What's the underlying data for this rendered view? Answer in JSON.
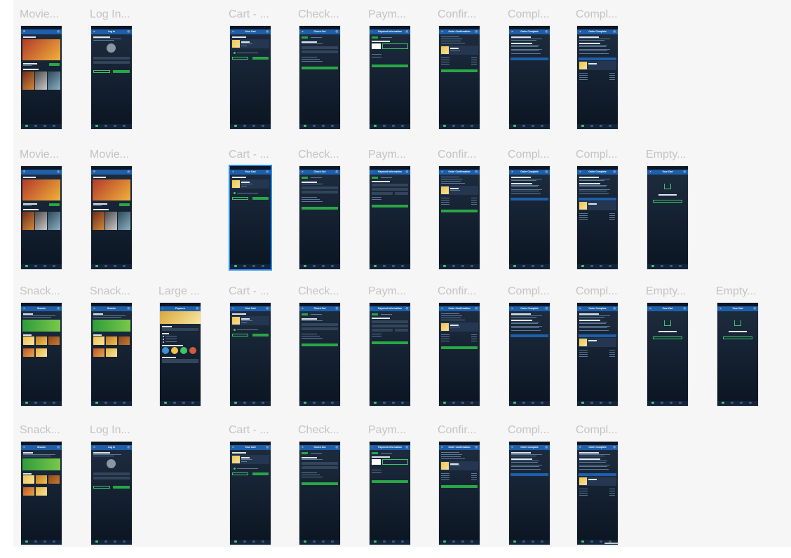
{
  "artboards": [
    {
      "title": "Movie...",
      "kind": "movies"
    },
    {
      "title": "Log In...",
      "kind": "login",
      "nav": "Log In"
    },
    {
      "title": "Cart - ...",
      "kind": "cart",
      "nav": "Your Cart"
    },
    {
      "title": "Check...",
      "kind": "checkout",
      "nav": "Check Out"
    },
    {
      "title": "Paym...",
      "kind": "payment",
      "nav": "Payment Information"
    },
    {
      "title": "Confir...",
      "kind": "confirm",
      "nav": "Order Confirmation"
    },
    {
      "title": "Compl...",
      "kind": "complete",
      "nav": "Order Complete"
    },
    {
      "title": "Compl...",
      "kind": "complete2",
      "nav": "Order Complete"
    },
    {
      "title": "Movie...",
      "kind": "movies"
    },
    {
      "title": "Movie...",
      "kind": "movies"
    },
    {
      "title": "Cart - ...",
      "kind": "cart",
      "nav": "Your Cart",
      "selected": true
    },
    {
      "title": "Check...",
      "kind": "checkout",
      "nav": "Check Out"
    },
    {
      "title": "Paym...",
      "kind": "payment2",
      "nav": "Payment Information"
    },
    {
      "title": "Confir...",
      "kind": "confirm",
      "nav": "Order Confirmation"
    },
    {
      "title": "Compl...",
      "kind": "complete",
      "nav": "Order Complete"
    },
    {
      "title": "Compl...",
      "kind": "complete2",
      "nav": "Order Complete"
    },
    {
      "title": "Empty...",
      "kind": "empty",
      "nav": "Your Cart"
    },
    {
      "title": "Snack...",
      "kind": "snacks",
      "nav": "Snacks"
    },
    {
      "title": "Snack...",
      "kind": "snacks",
      "nav": "Snacks"
    },
    {
      "title": "Large ...",
      "kind": "popcorn",
      "nav": "Popcorn"
    },
    {
      "title": "Cart - ...",
      "kind": "cart",
      "nav": "Your Cart"
    },
    {
      "title": "Check...",
      "kind": "checkout",
      "nav": "Check Out"
    },
    {
      "title": "Paym...",
      "kind": "payment2",
      "nav": "Payment Information"
    },
    {
      "title": "Confir...",
      "kind": "confirm",
      "nav": "Order Confirmation"
    },
    {
      "title": "Compl...",
      "kind": "complete",
      "nav": "Order Complete"
    },
    {
      "title": "Compl...",
      "kind": "complete2",
      "nav": "Order Complete"
    },
    {
      "title": "Empty...",
      "kind": "empty",
      "nav": "Your Cart"
    },
    {
      "title": "Empty...",
      "kind": "empty",
      "nav": "Your Cart"
    },
    {
      "title": "Snack...",
      "kind": "snacks",
      "nav": "Snacks"
    },
    {
      "title": "Log In...",
      "kind": "login",
      "nav": "Log In"
    },
    {
      "title": "Cart - ...",
      "kind": "cart",
      "nav": "Your Cart"
    },
    {
      "title": "Check...",
      "kind": "checkout",
      "nav": "Check Out"
    },
    {
      "title": "Paym...",
      "kind": "payment",
      "nav": "Payment Information"
    },
    {
      "title": "Confir...",
      "kind": "confirm",
      "nav": "Order Confirmation"
    },
    {
      "title": "Compl...",
      "kind": "complete",
      "nav": "Order Complete"
    },
    {
      "title": "Compl...",
      "kind": "complete2",
      "nav": "Order Complete"
    }
  ],
  "colors": {
    "canvas": "#f6f6f6",
    "title": "#c4c4c4",
    "phone_bg": "#0b1522",
    "nav_bar": "#1d5faa",
    "accent_green": "#28a745",
    "selection": "#2a8cf0"
  }
}
